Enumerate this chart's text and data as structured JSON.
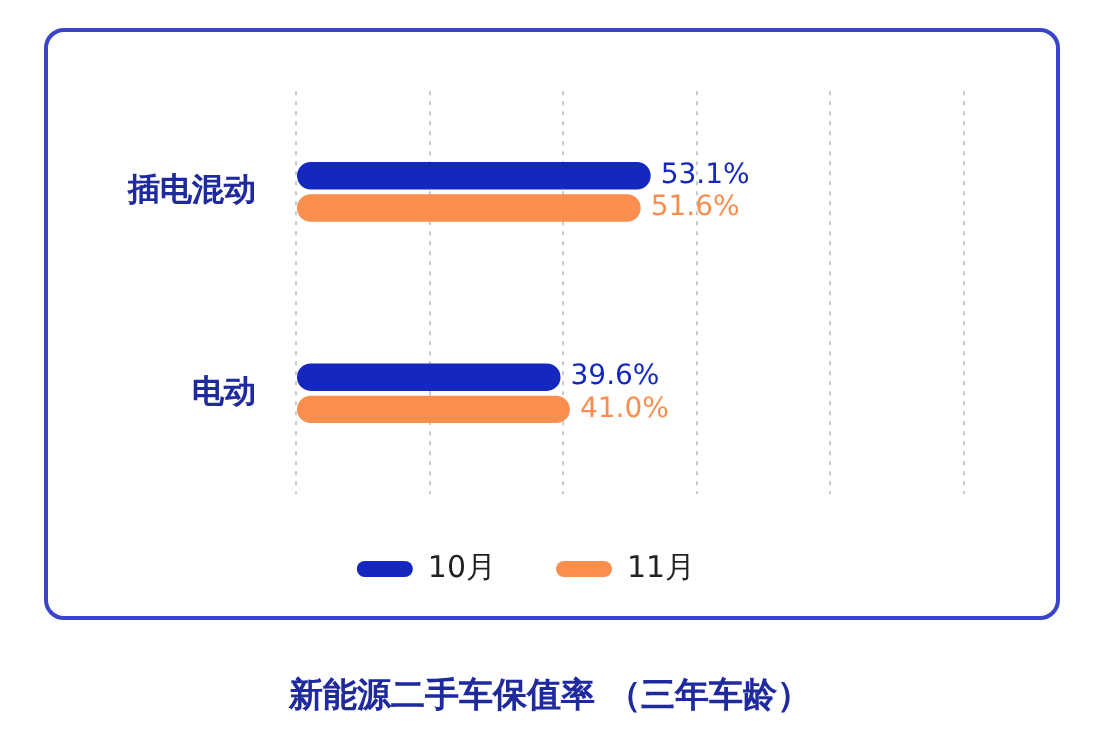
{
  "chart_data": {
    "type": "bar",
    "orientation": "horizontal",
    "title": "新能源二手车保值率 （三年车龄）",
    "categories": [
      "插电混动",
      "电动"
    ],
    "series": [
      {
        "name": "10月",
        "color": "#1428c0",
        "values": [
          53.1,
          39.6
        ],
        "value_labels": [
          "53.1%",
          "39.6%"
        ]
      },
      {
        "name": "11月",
        "color": "#f98e4e",
        "values": [
          51.6,
          41.0
        ],
        "value_labels": [
          "51.6%",
          "41.0%"
        ]
      }
    ],
    "xlim": [
      0,
      100
    ],
    "xticks": [
      {
        "value": 0,
        "label": null
      },
      {
        "value": 20,
        "label": null
      },
      {
        "value": 40,
        "label": null
      },
      {
        "value": 60,
        "label": null
      },
      {
        "value": 80,
        "label": null
      },
      {
        "value": 100,
        "label": null
      }
    ],
    "tick_labels": "y",
    "grid": "x",
    "line_style": "dotted",
    "legend": "bottom"
  }
}
